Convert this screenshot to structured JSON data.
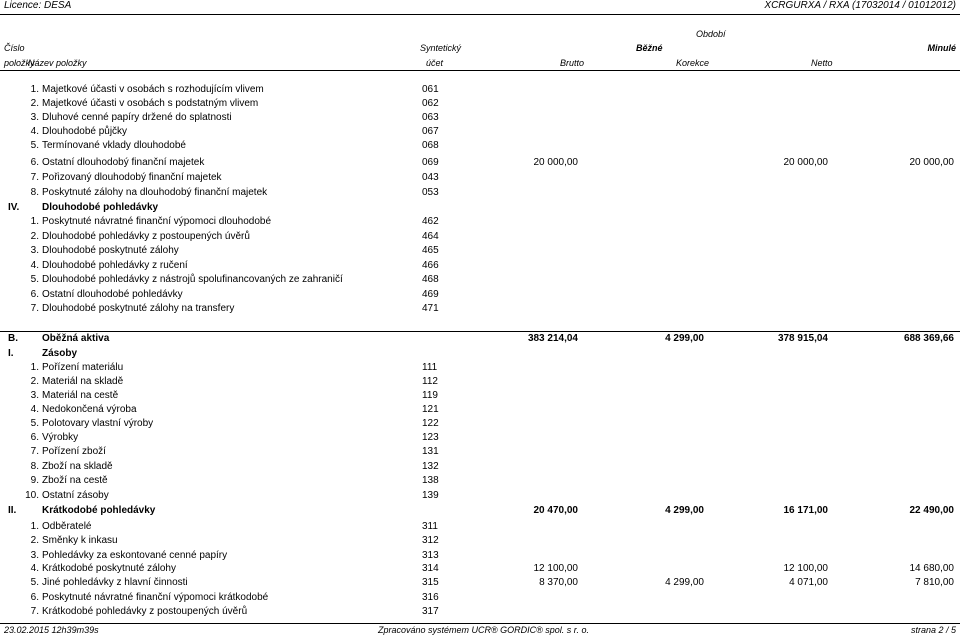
{
  "header": {
    "license": "Licence: DESA",
    "report_id": "XCRGURXA / RXA  (17032014 / 01012012)"
  },
  "columns": {
    "obdobi": "Období",
    "cislo": "Číslo",
    "polozky": "položky",
    "nazev": "Název položky",
    "synteticky": "Syntetický",
    "ucet": "účet",
    "bezne": "Běžné",
    "minule": "Minulé",
    "brutto": "Brutto",
    "korekce": "Korekce",
    "netto": "Netto"
  },
  "rows": [
    {
      "no": "1.",
      "name": "Majetkové účasti v osobách s rozhodujícím vlivem",
      "acct": "061",
      "brutto": "",
      "korekce": "",
      "netto": "",
      "minule": ""
    },
    {
      "no": "2.",
      "name": "Majetkové účasti v osobách s podstatným vlivem",
      "acct": "062",
      "brutto": "",
      "korekce": "",
      "netto": "",
      "minule": ""
    },
    {
      "no": "3.",
      "name": "Dluhové cenné papíry držené do splatnosti",
      "acct": "063",
      "brutto": "",
      "korekce": "",
      "netto": "",
      "minule": ""
    },
    {
      "no": "4.",
      "name": "Dlouhodobé půjčky",
      "acct": "067",
      "brutto": "",
      "korekce": "",
      "netto": "",
      "minule": ""
    },
    {
      "no": "5.",
      "name": "Termínované vklady dlouhodobé",
      "acct": "068",
      "brutto": "",
      "korekce": "",
      "netto": "",
      "minule": ""
    },
    {
      "no": "6.",
      "name": "Ostatní dlouhodobý finanční majetek",
      "acct": "069",
      "brutto": "20 000,00",
      "korekce": "",
      "netto": "20 000,00",
      "minule": "20 000,00"
    },
    {
      "no": "7.",
      "name": "Pořizovaný dlouhodobý finanční majetek",
      "acct": "043",
      "brutto": "",
      "korekce": "",
      "netto": "",
      "minule": ""
    },
    {
      "no": "8.",
      "name": "Poskytnuté zálohy na dlouhodobý finanční majetek",
      "acct": "053",
      "brutto": "",
      "korekce": "",
      "netto": "",
      "minule": ""
    },
    {
      "no": "IV.",
      "name": "Dlouhodobé pohledávky",
      "acct": "",
      "brutto": "",
      "korekce": "",
      "netto": "",
      "minule": "",
      "bold": true
    },
    {
      "no": "1.",
      "name": "Poskytnuté návratné finanční výpomoci dlouhodobé",
      "acct": "462",
      "brutto": "",
      "korekce": "",
      "netto": "",
      "minule": ""
    },
    {
      "no": "2.",
      "name": "Dlouhodobé pohledávky z postoupených úvěrů",
      "acct": "464",
      "brutto": "",
      "korekce": "",
      "netto": "",
      "minule": ""
    },
    {
      "no": "3.",
      "name": "Dlouhodobé poskytnuté zálohy",
      "acct": "465",
      "brutto": "",
      "korekce": "",
      "netto": "",
      "minule": ""
    },
    {
      "no": "4.",
      "name": "Dlouhodobé pohledávky z ručení",
      "acct": "466",
      "brutto": "",
      "korekce": "",
      "netto": "",
      "minule": ""
    },
    {
      "no": "5.",
      "name": "Dlouhodobé pohledávky z nástrojů spolufinancovaných ze zahraničí",
      "acct": "468",
      "brutto": "",
      "korekce": "",
      "netto": "",
      "minule": ""
    },
    {
      "no": "6.",
      "name": "Ostatní dlouhodobé pohledávky",
      "acct": "469",
      "brutto": "",
      "korekce": "",
      "netto": "",
      "minule": ""
    },
    {
      "no": "7.",
      "name": "Dlouhodobé poskytnuté zálohy na transfery",
      "acct": "471",
      "brutto": "",
      "korekce": "",
      "netto": "",
      "minule": ""
    },
    {
      "no": "B.",
      "name": "Oběžná aktiva",
      "acct": "",
      "brutto": "383 214,04",
      "korekce": "4 299,00",
      "netto": "378 915,04",
      "minule": "688 369,66",
      "bold": true,
      "section": true
    },
    {
      "no": "I.",
      "name": "Zásoby",
      "acct": "",
      "brutto": "",
      "korekce": "",
      "netto": "",
      "minule": "",
      "bold": true
    },
    {
      "no": "1.",
      "name": "Pořízení materiálu",
      "acct": "111",
      "brutto": "",
      "korekce": "",
      "netto": "",
      "minule": ""
    },
    {
      "no": "2.",
      "name": "Materiál na skladě",
      "acct": "112",
      "brutto": "",
      "korekce": "",
      "netto": "",
      "minule": ""
    },
    {
      "no": "3.",
      "name": "Materiál na cestě",
      "acct": "119",
      "brutto": "",
      "korekce": "",
      "netto": "",
      "minule": ""
    },
    {
      "no": "4.",
      "name": "Nedokončená výroba",
      "acct": "121",
      "brutto": "",
      "korekce": "",
      "netto": "",
      "minule": ""
    },
    {
      "no": "5.",
      "name": "Polotovary vlastní výroby",
      "acct": "122",
      "brutto": "",
      "korekce": "",
      "netto": "",
      "minule": ""
    },
    {
      "no": "6.",
      "name": "Výrobky",
      "acct": "123",
      "brutto": "",
      "korekce": "",
      "netto": "",
      "minule": ""
    },
    {
      "no": "7.",
      "name": "Pořízení zboží",
      "acct": "131",
      "brutto": "",
      "korekce": "",
      "netto": "",
      "minule": ""
    },
    {
      "no": "8.",
      "name": "Zboží na skladě",
      "acct": "132",
      "brutto": "",
      "korekce": "",
      "netto": "",
      "minule": ""
    },
    {
      "no": "9.",
      "name": "Zboží na cestě",
      "acct": "138",
      "brutto": "",
      "korekce": "",
      "netto": "",
      "minule": ""
    },
    {
      "no": "10.",
      "name": "Ostatní zásoby",
      "acct": "139",
      "brutto": "",
      "korekce": "",
      "netto": "",
      "minule": ""
    },
    {
      "no": "II.",
      "name": "Krátkodobé pohledávky",
      "acct": "",
      "brutto": "20 470,00",
      "korekce": "4 299,00",
      "netto": "16 171,00",
      "minule": "22 490,00",
      "bold": true
    },
    {
      "no": "1.",
      "name": "Odběratelé",
      "acct": "311",
      "brutto": "",
      "korekce": "",
      "netto": "",
      "minule": ""
    },
    {
      "no": "2.",
      "name": "Směnky k inkasu",
      "acct": "312",
      "brutto": "",
      "korekce": "",
      "netto": "",
      "minule": ""
    },
    {
      "no": "3.",
      "name": "Pohledávky za eskontované cenné papíry",
      "acct": "313",
      "brutto": "",
      "korekce": "",
      "netto": "",
      "minule": ""
    },
    {
      "no": "4.",
      "name": "Krátkodobé poskytnuté zálohy",
      "acct": "314",
      "brutto": "12 100,00",
      "korekce": "",
      "netto": "12 100,00",
      "minule": "14 680,00"
    },
    {
      "no": "5.",
      "name": "Jiné pohledávky z hlavní činnosti",
      "acct": "315",
      "brutto": "8 370,00",
      "korekce": "4 299,00",
      "netto": "4 071,00",
      "minule": "7 810,00"
    },
    {
      "no": "6.",
      "name": "Poskytnuté návratné finanční výpomoci krátkodobé",
      "acct": "316",
      "brutto": "",
      "korekce": "",
      "netto": "",
      "minule": ""
    },
    {
      "no": "7.",
      "name": "Krátkodobé pohledávky z postoupených úvěrů",
      "acct": "317",
      "brutto": "",
      "korekce": "",
      "netto": "",
      "minule": ""
    }
  ],
  "footer": {
    "timestamp": "23.02.2015 12h39m39s",
    "processed_by": "Zpracováno systémem UCR® GORDIC® spol. s  r. o.",
    "page": "strana 2 / 5"
  }
}
